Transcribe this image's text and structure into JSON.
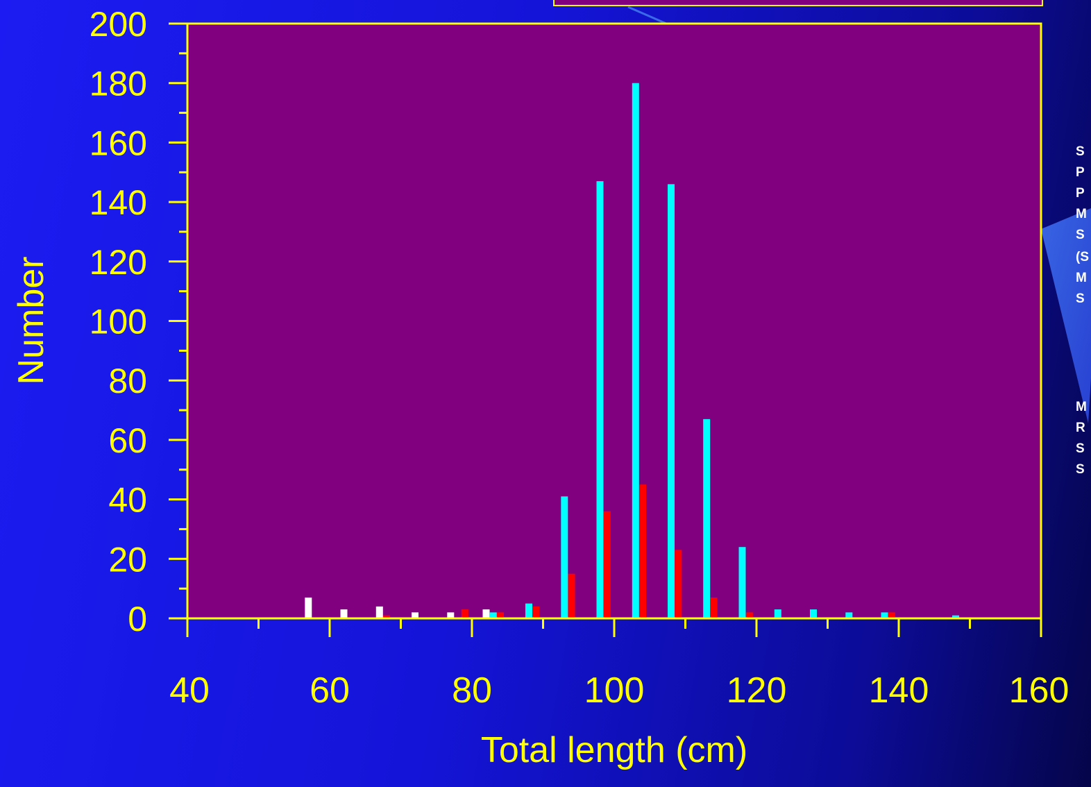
{
  "chart_data": {
    "type": "bar",
    "title": "",
    "xlabel": "Total length (cm)",
    "ylabel": "Number",
    "xlim": [
      40,
      160
    ],
    "ylim": [
      0,
      200
    ],
    "x_ticks": [
      40,
      60,
      80,
      100,
      120,
      140,
      160
    ],
    "x_minor_step": 10,
    "y_ticks": [
      0,
      20,
      40,
      60,
      80,
      100,
      120,
      140,
      160,
      180,
      200
    ],
    "y_minor_step": 10,
    "grid": false,
    "legend": "none",
    "colors": {
      "plot_background": "#800080",
      "frame": "#ffff00",
      "tick_label": "#ffff00",
      "series_white": "#ffffff",
      "series_cyan": "#00ffff",
      "series_red": "#ff0000"
    },
    "series": [
      {
        "color": "#ffffff",
        "points": [
          {
            "x": 57,
            "y": 7
          },
          {
            "x": 62,
            "y": 3
          },
          {
            "x": 67,
            "y": 4
          },
          {
            "x": 72,
            "y": 2
          },
          {
            "x": 77,
            "y": 2
          },
          {
            "x": 82,
            "y": 3
          }
        ]
      },
      {
        "color": "#00ffff",
        "points": [
          {
            "x": 83,
            "y": 2
          },
          {
            "x": 88,
            "y": 5
          },
          {
            "x": 93,
            "y": 41
          },
          {
            "x": 98,
            "y": 147
          },
          {
            "x": 103,
            "y": 180
          },
          {
            "x": 108,
            "y": 146
          },
          {
            "x": 113,
            "y": 67
          },
          {
            "x": 118,
            "y": 24
          },
          {
            "x": 123,
            "y": 3
          },
          {
            "x": 128,
            "y": 3
          },
          {
            "x": 133,
            "y": 2
          },
          {
            "x": 138,
            "y": 2
          },
          {
            "x": 148,
            "y": 1
          }
        ]
      },
      {
        "color": "#ff0000",
        "points": [
          {
            "x": 68,
            "y": 1
          },
          {
            "x": 79,
            "y": 3
          },
          {
            "x": 84,
            "y": 2
          },
          {
            "x": 89,
            "y": 4
          },
          {
            "x": 94,
            "y": 15
          },
          {
            "x": 99,
            "y": 36
          },
          {
            "x": 104,
            "y": 45
          },
          {
            "x": 109,
            "y": 23
          },
          {
            "x": 114,
            "y": 7
          },
          {
            "x": 119,
            "y": 2
          },
          {
            "x": 139,
            "y": 2
          }
        ]
      }
    ]
  },
  "side_notes": [
    "S",
    "P",
    "P",
    "M",
    "S",
    "(S",
    "M",
    "S",
    "M",
    "R",
    "S",
    "S"
  ]
}
